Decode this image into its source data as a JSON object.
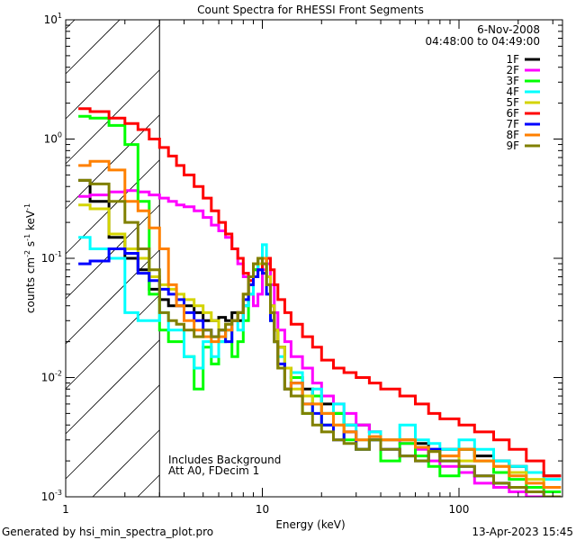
{
  "chart_data": {
    "type": "line",
    "title": "Count Spectra for RHESSI Front Segments",
    "xlabel": "Energy (keV)",
    "ylabel": "counts cm",
    "ylabel_parts": [
      "counts cm",
      "-2",
      " s",
      "-1",
      " keV",
      "-1"
    ],
    "xscale": "log",
    "yscale": "log",
    "xlim": [
      1,
      336
    ],
    "ylim": [
      0.001,
      10
    ],
    "x_ticks": [
      {
        "v": 1,
        "label": "1"
      },
      {
        "v": 10,
        "label": "10"
      },
      {
        "v": 100,
        "label": "100"
      }
    ],
    "y_ticks": [
      {
        "v": 0.001,
        "base": "10",
        "exp": "-3"
      },
      {
        "v": 0.01,
        "base": "10",
        "exp": "-2"
      },
      {
        "v": 0.1,
        "base": "10",
        "exp": "-1"
      },
      {
        "v": 1,
        "base": "10",
        "exp": "0"
      },
      {
        "v": 10,
        "base": "10",
        "exp": "1"
      }
    ],
    "date": "6-Nov-2008",
    "time_range": "04:48:00 to 04:49:00",
    "hatched_region_keV": [
      1,
      3
    ],
    "annotations": [
      "Includes Background",
      "Att A0, FDecim 1"
    ],
    "legend_placement": "top-right",
    "energy_edges": [
      1.16,
      1.33,
      1.66,
      2.0,
      2.33,
      2.66,
      3.0,
      3.33,
      3.66,
      4.0,
      4.5,
      5,
      5.5,
      6,
      6.5,
      7,
      7.5,
      8,
      8.5,
      9,
      9.5,
      10,
      10.5,
      11,
      11.5,
      12,
      13,
      14,
      16,
      18,
      20,
      23,
      26,
      30,
      35,
      40,
      50,
      60,
      70,
      80,
      100,
      120,
      150,
      180,
      220,
      270,
      330
    ],
    "series": [
      {
        "name": "1F",
        "color": "#000000",
        "values": [
          0.45,
          0.3,
          0.15,
          0.1,
          0.08,
          0.055,
          0.045,
          0.04,
          0.04,
          0.04,
          0.035,
          0.03,
          0.03,
          0.032,
          0.03,
          0.035,
          0.03,
          0.04,
          0.06,
          0.08,
          0.1,
          0.1,
          0.07,
          0.04,
          0.025,
          0.018,
          0.012,
          0.01,
          0.008,
          0.007,
          0.006,
          0.005,
          0.004,
          0.004,
          0.0035,
          0.003,
          0.003,
          0.0028,
          0.0025,
          0.0025,
          0.0025,
          0.0022,
          0.002,
          0.0018,
          0.0016,
          0.0015
        ]
      },
      {
        "name": "2F",
        "color": "#ff00ff",
        "values": [
          0.33,
          0.34,
          0.36,
          0.37,
          0.36,
          0.34,
          0.32,
          0.3,
          0.28,
          0.27,
          0.25,
          0.22,
          0.19,
          0.17,
          0.15,
          0.12,
          0.09,
          0.07,
          0.05,
          0.04,
          0.05,
          0.08,
          0.09,
          0.06,
          0.035,
          0.025,
          0.02,
          0.015,
          0.012,
          0.009,
          0.007,
          0.006,
          0.005,
          0.004,
          0.0035,
          0.003,
          0.0028,
          0.0025,
          0.002,
          0.0018,
          0.0016,
          0.0013,
          0.0012,
          0.0011,
          0.001,
          0.001
        ]
      },
      {
        "name": "3F",
        "color": "#00ff00",
        "values": [
          1.55,
          1.5,
          1.3,
          0.9,
          0.3,
          0.05,
          0.025,
          0.02,
          0.02,
          0.015,
          0.008,
          0.018,
          0.013,
          0.02,
          0.025,
          0.015,
          0.02,
          0.03,
          0.05,
          0.08,
          0.1,
          0.1,
          0.06,
          0.03,
          0.02,
          0.012,
          0.008,
          0.01,
          0.005,
          0.007,
          0.004,
          0.005,
          0.003,
          0.0025,
          0.003,
          0.002,
          0.0028,
          0.0022,
          0.0018,
          0.0015,
          0.0025,
          0.002,
          0.0016,
          0.0014,
          0.0012,
          0.0011
        ]
      },
      {
        "name": "4F",
        "color": "#00ffff",
        "values": [
          0.15,
          0.12,
          0.1,
          0.035,
          0.03,
          0.03,
          0.035,
          0.025,
          0.025,
          0.015,
          0.012,
          0.02,
          0.015,
          0.02,
          0.025,
          0.03,
          0.025,
          0.04,
          0.05,
          0.07,
          0.1,
          0.13,
          0.07,
          0.035,
          0.02,
          0.015,
          0.008,
          0.011,
          0.007,
          0.008,
          0.005,
          0.006,
          0.004,
          0.003,
          0.0035,
          0.003,
          0.004,
          0.003,
          0.0028,
          0.0025,
          0.003,
          0.0025,
          0.002,
          0.0018,
          0.0016,
          0.0014
        ]
      },
      {
        "name": "5F",
        "color": "#d4d400",
        "values": [
          0.28,
          0.26,
          0.16,
          0.12,
          0.1,
          0.07,
          0.06,
          0.055,
          0.05,
          0.045,
          0.04,
          0.035,
          0.03,
          0.025,
          0.028,
          0.03,
          0.035,
          0.05,
          0.07,
          0.09,
          0.09,
          0.1,
          0.07,
          0.04,
          0.025,
          0.018,
          0.012,
          0.008,
          0.007,
          0.006,
          0.005,
          0.004,
          0.0035,
          0.003,
          0.0032,
          0.003,
          0.003,
          0.0026,
          0.0024,
          0.0022,
          0.002,
          0.002,
          0.0018,
          0.0016,
          0.0014,
          0.0012
        ]
      },
      {
        "name": "6F",
        "color": "#ff0000",
        "values": [
          1.8,
          1.7,
          1.5,
          1.35,
          1.2,
          1.0,
          0.85,
          0.72,
          0.6,
          0.5,
          0.4,
          0.32,
          0.25,
          0.2,
          0.16,
          0.12,
          0.1,
          0.075,
          0.065,
          0.07,
          0.08,
          0.09,
          0.1,
          0.08,
          0.06,
          0.045,
          0.035,
          0.028,
          0.022,
          0.018,
          0.014,
          0.012,
          0.011,
          0.01,
          0.009,
          0.008,
          0.007,
          0.006,
          0.005,
          0.0045,
          0.004,
          0.0035,
          0.003,
          0.0025,
          0.002,
          0.0015
        ]
      },
      {
        "name": "7F",
        "color": "#0000ff",
        "values": [
          0.09,
          0.095,
          0.12,
          0.11,
          0.075,
          0.065,
          0.055,
          0.05,
          0.045,
          0.035,
          0.03,
          0.025,
          0.022,
          0.025,
          0.02,
          0.03,
          0.035,
          0.045,
          0.06,
          0.07,
          0.08,
          0.075,
          0.05,
          0.03,
          0.02,
          0.013,
          0.008,
          0.009,
          0.006,
          0.005,
          0.004,
          0.003,
          0.0035,
          0.0025,
          0.003,
          0.0025,
          0.0022,
          0.002,
          0.0025,
          0.002,
          0.0018,
          0.0015,
          0.0013,
          0.0012,
          0.0011,
          0.001
        ]
      },
      {
        "name": "8F",
        "color": "#ff8000",
        "values": [
          0.6,
          0.65,
          0.55,
          0.3,
          0.25,
          0.18,
          0.12,
          0.06,
          0.04,
          0.03,
          0.025,
          0.022,
          0.02,
          0.022,
          0.025,
          0.03,
          0.035,
          0.05,
          0.07,
          0.09,
          0.1,
          0.1,
          0.06,
          0.035,
          0.02,
          0.012,
          0.008,
          0.009,
          0.006,
          0.006,
          0.005,
          0.004,
          0.0035,
          0.003,
          0.0032,
          0.003,
          0.003,
          0.0026,
          0.0024,
          0.0022,
          0.0025,
          0.002,
          0.0018,
          0.0015,
          0.0013,
          0.0012
        ]
      },
      {
        "name": "9F",
        "color": "#808000",
        "values": [
          0.45,
          0.42,
          0.3,
          0.2,
          0.12,
          0.08,
          0.035,
          0.03,
          0.028,
          0.025,
          0.022,
          0.025,
          0.022,
          0.025,
          0.028,
          0.03,
          0.035,
          0.05,
          0.07,
          0.09,
          0.1,
          0.09,
          0.06,
          0.035,
          0.02,
          0.012,
          0.008,
          0.007,
          0.005,
          0.004,
          0.0035,
          0.003,
          0.0028,
          0.0025,
          0.003,
          0.0025,
          0.0022,
          0.002,
          0.0024,
          0.002,
          0.0018,
          0.0015,
          0.0013,
          0.0012,
          0.0011,
          0.001
        ]
      }
    ]
  },
  "footer": {
    "generated_by": "Generated by hsi_min_spectra_plot.pro",
    "timestamp": "13-Apr-2023 15:45"
  }
}
